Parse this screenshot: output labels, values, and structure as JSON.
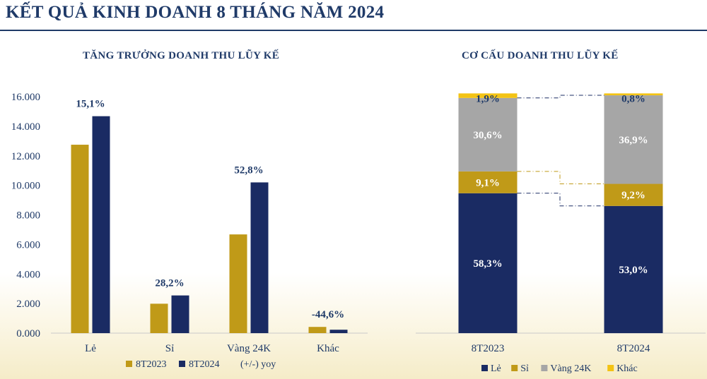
{
  "title": "KẾT QUẢ KINH DOANH 8 THÁNG NĂM 2024",
  "colors": {
    "gold": "#c09a18",
    "navy": "#1a2b63",
    "gray": "#a6a6a6",
    "yellow": "#f3c314",
    "axis": "#1f3a68"
  },
  "chart_data": [
    {
      "type": "bar",
      "title": "TĂNG TRƯỞNG DOANH THU LŨY KẾ",
      "categories": [
        "Lẻ",
        "Sỉ",
        "Vàng 24K",
        "Khác"
      ],
      "series": [
        {
          "name": "8T2023",
          "values": [
            12750,
            1990,
            6680,
            420
          ],
          "color": "#c09a18"
        },
        {
          "name": "8T2024",
          "values": [
            14680,
            2550,
            10200,
            230
          ],
          "color": "#1a2b63"
        }
      ],
      "annotation_series": "(+/-) yoy",
      "annotations": [
        "15,1%",
        "28,2%",
        "52,8%",
        "-44,6%"
      ],
      "ylim": [
        0,
        16000
      ],
      "yticks": [
        "0.000",
        "2.000",
        "4.000",
        "6.000",
        "8.000",
        "10.000",
        "12.000",
        "14.000",
        "16.000"
      ],
      "ytick_values": [
        0,
        2000,
        4000,
        6000,
        8000,
        10000,
        12000,
        14000,
        16000
      ],
      "legend": [
        "8T2023",
        "8T2024",
        "(+/-) yoy"
      ],
      "legend_position": "bottom",
      "grid": false
    },
    {
      "type": "bar",
      "stacked": true,
      "percent": true,
      "title": "CƠ CẤU DOANH THU LŨY KẾ",
      "categories": [
        "8T2023",
        "8T2024"
      ],
      "series": [
        {
          "name": "Lẻ",
          "values": [
            58.3,
            53.0
          ],
          "labels": [
            "58,3%",
            "53,0%"
          ],
          "color": "#1a2b63",
          "label_color": "#ffffff"
        },
        {
          "name": "Sỉ",
          "values": [
            9.1,
            9.2
          ],
          "labels": [
            "9,1%",
            "9,2%"
          ],
          "color": "#c09a18",
          "label_color": "#ffffff"
        },
        {
          "name": "Vàng 24K",
          "values": [
            30.6,
            36.9
          ],
          "labels": [
            "30,6%",
            "36,9%"
          ],
          "color": "#a6a6a6",
          "label_color": "#ffffff"
        },
        {
          "name": "Khác",
          "values": [
            1.9,
            0.8
          ],
          "labels": [
            "1,9%",
            "0,8%"
          ],
          "color": "#f3c314",
          "label_color": "#1f3a68"
        }
      ],
      "ylim": [
        0,
        100
      ],
      "legend": [
        "Lẻ",
        "Sỉ",
        "Vàng 24K",
        "Khác"
      ],
      "legend_position": "bottom"
    }
  ]
}
